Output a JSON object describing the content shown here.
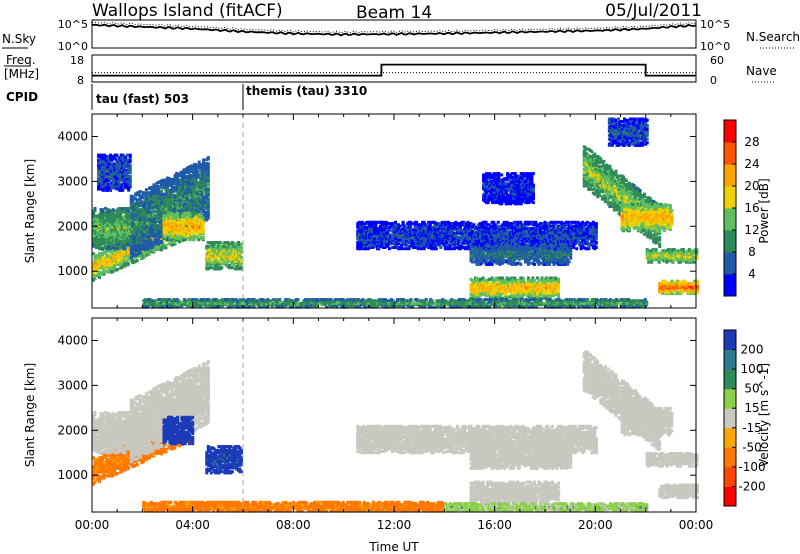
{
  "header": {
    "station": "Wallops Island (fitACF)",
    "beam": "Beam 14",
    "date": "05/Jul/2011"
  },
  "noise_panel": {
    "left_label": "N.Sky",
    "right_label": "N.Search",
    "left_ticks": [
      "10^5",
      "10^0"
    ],
    "right_ticks": [
      "10^5",
      "10^0"
    ],
    "log_range": [
      0,
      5
    ],
    "sky_level": [
      [
        0,
        4.4
      ],
      [
        2,
        4.0
      ],
      [
        4,
        3.6
      ],
      [
        6,
        3.0
      ],
      [
        8,
        2.6
      ],
      [
        10,
        2.4
      ],
      [
        12,
        2.5
      ],
      [
        14,
        2.6
      ],
      [
        16,
        2.8
      ],
      [
        18,
        3.0
      ],
      [
        20,
        3.2
      ],
      [
        22,
        3.6
      ],
      [
        23,
        4.0
      ],
      [
        24,
        4.3
      ]
    ]
  },
  "freq_panel": {
    "left_label": "Freq.",
    "left_unit": "[MHz]",
    "right_label": "Nave",
    "left_ticks": [
      "18",
      "8"
    ],
    "right_ticks": [
      "60",
      "0"
    ],
    "freq_steps": [
      [
        0,
        10
      ],
      [
        6,
        10
      ],
      [
        11.5,
        15
      ],
      [
        22,
        10
      ],
      [
        24,
        10
      ]
    ],
    "nave_steps": [
      [
        0,
        20
      ],
      [
        11.5,
        20
      ],
      [
        22,
        20
      ],
      [
        24,
        20
      ]
    ]
  },
  "cpid": {
    "label": "CPID",
    "segments": [
      {
        "name": "tau (fast) 503",
        "start": 0,
        "end": 6
      },
      {
        "name": "themis (tau) 3310",
        "start": 6,
        "end": 24
      }
    ]
  },
  "chart_data": [
    {
      "type": "heatmap",
      "panel": "power",
      "ylabel": "Slant Range [km]",
      "xlabel": "Time UT",
      "xlim": [
        0,
        24
      ],
      "ylim": [
        180,
        4500
      ],
      "x_ticks": [
        "00:00",
        "04:00",
        "08:00",
        "12:00",
        "16:00",
        "20:00",
        "00:00"
      ],
      "y_ticks": [
        1000,
        2000,
        3000,
        4000
      ],
      "colorbar": {
        "label": "Power [dB]",
        "ticks": [
          4,
          8,
          12,
          16,
          20,
          24,
          28
        ],
        "range": [
          0,
          30
        ],
        "colors": [
          "#0000ff",
          "#1e5aa8",
          "#2e8b57",
          "#5fbf5f",
          "#f0d000",
          "#ffa500",
          "#ff5500",
          "#ff0000"
        ]
      },
      "blobs": [
        {
          "t0": 0.0,
          "t1": 3.8,
          "r0": 800,
          "r1": 1400,
          "slope": 250,
          "v": 20
        },
        {
          "t0": 0.0,
          "t1": 2.0,
          "r0": 1500,
          "r1": 2400,
          "slope": 0,
          "v": 14
        },
        {
          "t0": 1.5,
          "t1": 4.6,
          "r0": 1300,
          "r1": 2700,
          "slope": 280,
          "v": 10
        },
        {
          "t0": 2.8,
          "t1": 4.4,
          "r0": 1700,
          "r1": 2300,
          "slope": 0,
          "v": 22
        },
        {
          "t0": 4.5,
          "t1": 5.9,
          "r0": 1050,
          "r1": 1650,
          "slope": 0,
          "v": 18
        },
        {
          "t0": 0.2,
          "t1": 1.5,
          "r0": 2800,
          "r1": 3600,
          "slope": 0,
          "v": 6
        },
        {
          "t0": 10.5,
          "t1": 20.0,
          "r0": 1500,
          "r1": 2100,
          "slope": 0,
          "v": 5
        },
        {
          "t0": 15.0,
          "t1": 19.0,
          "r0": 1150,
          "r1": 1600,
          "slope": 0,
          "v": 8
        },
        {
          "t0": 15.0,
          "t1": 18.5,
          "r0": 400,
          "r1": 850,
          "slope": 0,
          "v": 21
        },
        {
          "t0": 15.5,
          "t1": 17.5,
          "r0": 2500,
          "r1": 3200,
          "slope": 0,
          "v": 4
        },
        {
          "t0": 19.5,
          "t1": 22.5,
          "r0": 2900,
          "r1": 3800,
          "slope": -450,
          "v": 16
        },
        {
          "t0": 21.0,
          "t1": 23.0,
          "r0": 1900,
          "r1": 2500,
          "slope": 0,
          "v": 22
        },
        {
          "t0": 22.0,
          "t1": 24.0,
          "r0": 1200,
          "r1": 1500,
          "slope": 0,
          "v": 18
        },
        {
          "t0": 22.5,
          "t1": 24.0,
          "r0": 500,
          "r1": 800,
          "slope": 0,
          "v": 27
        },
        {
          "t0": 20.5,
          "t1": 22.0,
          "r0": 3800,
          "r1": 4400,
          "slope": 0,
          "v": 6
        },
        {
          "t0": 2.0,
          "t1": 22.0,
          "r0": 200,
          "r1": 380,
          "slope": 0,
          "v": 12
        }
      ]
    },
    {
      "type": "heatmap",
      "panel": "velocity",
      "ylabel": "Slant Range [km]",
      "xlabel": "Time UT",
      "xlim": [
        0,
        24
      ],
      "ylim": [
        180,
        4500
      ],
      "x_ticks": [
        "00:00",
        "04:00",
        "08:00",
        "12:00",
        "16:00",
        "20:00",
        "00:00"
      ],
      "y_ticks": [
        1000,
        2000,
        3000,
        4000
      ],
      "colorbar": {
        "label": "Velocity [m s^-1]",
        "ticks": [
          200,
          100,
          50,
          15,
          -15,
          -50,
          -100,
          -200
        ],
        "range": [
          -250,
          250
        ],
        "colors": [
          "#1a3ab8",
          "#2e7d8c",
          "#2e8b57",
          "#8bd04a",
          "#c8c8c0",
          "#ffa500",
          "#ff7700",
          "#ff4500",
          "#ff0000"
        ]
      },
      "blobs": [
        {
          "t0": 0.0,
          "t1": 3.8,
          "r0": 800,
          "r1": 1400,
          "slope": 250,
          "v": -40
        },
        {
          "t0": 0.0,
          "t1": 2.0,
          "r0": 1500,
          "r1": 2400,
          "slope": 0,
          "v": 0
        },
        {
          "t0": 1.5,
          "t1": 4.6,
          "r0": 1300,
          "r1": 2700,
          "slope": 280,
          "v": 0
        },
        {
          "t0": 2.8,
          "t1": 4.0,
          "r0": 1700,
          "r1": 2300,
          "slope": 0,
          "v": 180
        },
        {
          "t0": 4.5,
          "t1": 5.9,
          "r0": 1050,
          "r1": 1650,
          "slope": 0,
          "v": 160
        },
        {
          "t0": 10.5,
          "t1": 20.0,
          "r0": 1500,
          "r1": 2100,
          "slope": 0,
          "v": 0
        },
        {
          "t0": 15.0,
          "t1": 19.0,
          "r0": 1150,
          "r1": 1600,
          "slope": 0,
          "v": 0
        },
        {
          "t0": 15.0,
          "t1": 18.5,
          "r0": 400,
          "r1": 850,
          "slope": 0,
          "v": 0
        },
        {
          "t0": 19.5,
          "t1": 22.5,
          "r0": 2900,
          "r1": 3800,
          "slope": -450,
          "v": 0
        },
        {
          "t0": 21.0,
          "t1": 23.0,
          "r0": 1900,
          "r1": 2500,
          "slope": 0,
          "v": 0
        },
        {
          "t0": 22.0,
          "t1": 24.0,
          "r0": 1200,
          "r1": 1500,
          "slope": 0,
          "v": 0
        },
        {
          "t0": 22.5,
          "t1": 24.0,
          "r0": 500,
          "r1": 800,
          "slope": 0,
          "v": 0
        },
        {
          "t0": 2.0,
          "t1": 14.0,
          "r0": 200,
          "r1": 420,
          "slope": 0,
          "v": -40
        },
        {
          "t0": 14.0,
          "t1": 22.0,
          "r0": 200,
          "r1": 380,
          "slope": 0,
          "v": 20
        }
      ]
    }
  ]
}
